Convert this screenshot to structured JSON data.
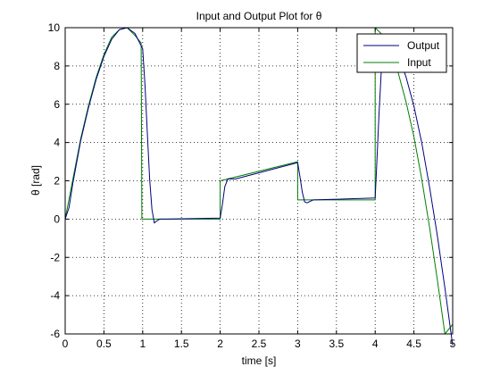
{
  "chart_data": {
    "type": "line",
    "title": "Input and Output Plot for θ",
    "xlabel": "time [s]",
    "ylabel": "θ [rad]",
    "xlim": [
      0,
      5
    ],
    "ylim": [
      -6,
      10
    ],
    "x_ticks": [
      0,
      0.5,
      1,
      1.5,
      2,
      2.5,
      3,
      3.5,
      4,
      4.5,
      5
    ],
    "x_tick_labels": [
      "0",
      "0.5",
      "1",
      "1.5",
      "2",
      "2.5",
      "3",
      "3.5",
      "4",
      "4.5",
      "5"
    ],
    "y_ticks": [
      -6,
      -4,
      -2,
      0,
      2,
      4,
      6,
      8,
      10
    ],
    "y_tick_labels": [
      "-6",
      "-4",
      "-2",
      "0",
      "2",
      "4",
      "6",
      "8",
      "10"
    ],
    "grid": true,
    "legend_position": "top-right",
    "series": [
      {
        "name": "Output",
        "color": "#00007f",
        "x": [
          0,
          0.05,
          0.1,
          0.2,
          0.3,
          0.4,
          0.5,
          0.6,
          0.7,
          0.8,
          0.9,
          1.0,
          1.03,
          1.06,
          1.09,
          1.12,
          1.15,
          1.18,
          1.22,
          1.3,
          2.0,
          2.03,
          2.06,
          2.1,
          2.2,
          3.0,
          3.03,
          3.06,
          3.09,
          3.12,
          3.2,
          4.0,
          4.02,
          4.05,
          4.08,
          4.12,
          4.2,
          4.3,
          4.4,
          4.5,
          4.6,
          4.7,
          4.8,
          4.9,
          5.0
        ],
        "values": [
          0,
          0.6,
          1.9,
          4.1,
          5.8,
          7.3,
          8.5,
          9.4,
          9.9,
          10.0,
          9.7,
          8.9,
          7.0,
          4.5,
          2.1,
          0.5,
          -0.2,
          -0.1,
          0,
          0,
          0.05,
          0.8,
          1.7,
          2.1,
          2.1,
          2.95,
          2.2,
          1.4,
          0.9,
          0.85,
          1.0,
          1.1,
          2.8,
          5.5,
          7.8,
          9.2,
          9.3,
          8.6,
          7.4,
          5.9,
          4.0,
          1.7,
          -0.8,
          -3.6,
          -6.6
        ]
      },
      {
        "name": "Input",
        "color": "#007f00",
        "x": [
          0,
          0.1,
          0.2,
          0.3,
          0.4,
          0.5,
          0.6,
          0.7,
          0.8,
          0.9,
          0.98,
          0.99,
          2.0,
          2.0,
          3.0,
          3.0,
          4.0,
          4.0,
          4.1,
          4.2,
          4.3,
          4.4,
          4.5,
          4.6,
          4.7,
          4.8,
          4.9,
          5.0
        ],
        "values": [
          0,
          2.1,
          4.2,
          5.9,
          7.4,
          8.6,
          9.5,
          9.9,
          10.0,
          9.6,
          9.2,
          0,
          0,
          2.0,
          3.0,
          1.0,
          1.0,
          10.0,
          9.6,
          8.8,
          7.6,
          6.1,
          4.3,
          2.1,
          -0.4,
          -3.1,
          -6.0,
          -5.5
        ]
      }
    ]
  }
}
